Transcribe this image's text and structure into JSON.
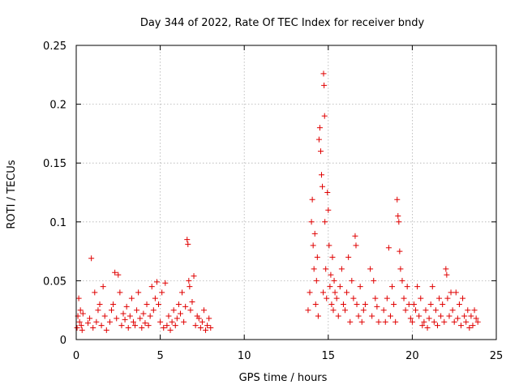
{
  "chart_data": {
    "type": "scatter",
    "title": "Day 344 of 2022, Rate Of TEC Index for receiver bndy",
    "xlabel": "GPS time / hours",
    "ylabel": "ROTI / TECUs",
    "xlim": [
      0,
      25
    ],
    "ylim": [
      0,
      0.25
    ],
    "xticks": [
      0,
      5,
      10,
      15,
      20,
      25
    ],
    "xtick_labels": [
      "0",
      "5",
      "10",
      "15",
      "20",
      "25"
    ],
    "yticks": [
      0,
      0.05,
      0.1,
      0.15,
      0.2,
      0.25
    ],
    "ytick_labels": [
      "0",
      "0.05",
      "0.1",
      "0.15",
      "0.2",
      "0.25"
    ],
    "grid": true,
    "marker": "+",
    "color": "#e00000",
    "series": [
      {
        "name": "ROTI",
        "points": [
          [
            0.05,
            0.01
          ],
          [
            0.1,
            0.02
          ],
          [
            0.15,
            0.035
          ],
          [
            0.2,
            0.015
          ],
          [
            0.25,
            0.025
          ],
          [
            0.3,
            0.012
          ],
          [
            0.35,
            0.008
          ],
          [
            0.4,
            0.022
          ],
          [
            0.7,
            0.014
          ],
          [
            0.8,
            0.018
          ],
          [
            0.9,
            0.069
          ],
          [
            1.0,
            0.01
          ],
          [
            1.1,
            0.04
          ],
          [
            1.2,
            0.015
          ],
          [
            1.3,
            0.025
          ],
          [
            1.4,
            0.03
          ],
          [
            1.5,
            0.012
          ],
          [
            1.6,
            0.045
          ],
          [
            1.7,
            0.02
          ],
          [
            1.8,
            0.008
          ],
          [
            2.0,
            0.015
          ],
          [
            2.1,
            0.025
          ],
          [
            2.2,
            0.03
          ],
          [
            2.3,
            0.057
          ],
          [
            2.4,
            0.018
          ],
          [
            2.5,
            0.055
          ],
          [
            2.6,
            0.04
          ],
          [
            2.7,
            0.012
          ],
          [
            2.8,
            0.022
          ],
          [
            2.9,
            0.017
          ],
          [
            3.0,
            0.028
          ],
          [
            3.1,
            0.01
          ],
          [
            3.2,
            0.02
          ],
          [
            3.3,
            0.035
          ],
          [
            3.4,
            0.015
          ],
          [
            3.5,
            0.012
          ],
          [
            3.6,
            0.025
          ],
          [
            3.7,
            0.04
          ],
          [
            3.8,
            0.018
          ],
          [
            3.9,
            0.01
          ],
          [
            4.0,
            0.022
          ],
          [
            4.1,
            0.014
          ],
          [
            4.2,
            0.03
          ],
          [
            4.3,
            0.012
          ],
          [
            4.4,
            0.02
          ],
          [
            4.5,
            0.045
          ],
          [
            4.6,
            0.025
          ],
          [
            4.7,
            0.035
          ],
          [
            4.8,
            0.049
          ],
          [
            4.9,
            0.03
          ],
          [
            5.0,
            0.015
          ],
          [
            5.1,
            0.04
          ],
          [
            5.2,
            0.01
          ],
          [
            5.3,
            0.048
          ],
          [
            5.4,
            0.012
          ],
          [
            5.5,
            0.02
          ],
          [
            5.6,
            0.008
          ],
          [
            5.7,
            0.015
          ],
          [
            5.8,
            0.025
          ],
          [
            5.9,
            0.012
          ],
          [
            6.0,
            0.018
          ],
          [
            6.1,
            0.03
          ],
          [
            6.2,
            0.022
          ],
          [
            6.3,
            0.04
          ],
          [
            6.4,
            0.015
          ],
          [
            6.5,
            0.028
          ],
          [
            6.6,
            0.085
          ],
          [
            6.65,
            0.081
          ],
          [
            6.7,
            0.05
          ],
          [
            6.75,
            0.045
          ],
          [
            6.8,
            0.025
          ],
          [
            6.9,
            0.032
          ],
          [
            7.0,
            0.054
          ],
          [
            7.1,
            0.012
          ],
          [
            7.2,
            0.02
          ],
          [
            7.3,
            0.018
          ],
          [
            7.4,
            0.01
          ],
          [
            7.5,
            0.015
          ],
          [
            7.6,
            0.025
          ],
          [
            7.7,
            0.008
          ],
          [
            7.8,
            0.012
          ],
          [
            7.9,
            0.018
          ],
          [
            8.0,
            0.01
          ],
          [
            13.8,
            0.025
          ],
          [
            13.9,
            0.04
          ],
          [
            14.0,
            0.1
          ],
          [
            14.05,
            0.119
          ],
          [
            14.1,
            0.08
          ],
          [
            14.15,
            0.06
          ],
          [
            14.2,
            0.09
          ],
          [
            14.25,
            0.03
          ],
          [
            14.3,
            0.05
          ],
          [
            14.35,
            0.07
          ],
          [
            14.4,
            0.02
          ],
          [
            14.45,
            0.17
          ],
          [
            14.5,
            0.18
          ],
          [
            14.55,
            0.16
          ],
          [
            14.6,
            0.14
          ],
          [
            14.65,
            0.13
          ],
          [
            14.7,
            0.04
          ],
          [
            14.72,
            0.226
          ],
          [
            14.75,
            0.216
          ],
          [
            14.78,
            0.19
          ],
          [
            14.8,
            0.1
          ],
          [
            14.85,
            0.06
          ],
          [
            14.9,
            0.035
          ],
          [
            14.95,
            0.125
          ],
          [
            15.0,
            0.11
          ],
          [
            15.05,
            0.08
          ],
          [
            15.1,
            0.045
          ],
          [
            15.15,
            0.055
          ],
          [
            15.2,
            0.03
          ],
          [
            15.25,
            0.07
          ],
          [
            15.3,
            0.025
          ],
          [
            15.35,
            0.05
          ],
          [
            15.4,
            0.04
          ],
          [
            15.5,
            0.035
          ],
          [
            15.6,
            0.02
          ],
          [
            15.7,
            0.045
          ],
          [
            15.8,
            0.06
          ],
          [
            15.9,
            0.03
          ],
          [
            16.0,
            0.025
          ],
          [
            16.1,
            0.04
          ],
          [
            16.2,
            0.07
          ],
          [
            16.3,
            0.015
          ],
          [
            16.4,
            0.05
          ],
          [
            16.5,
            0.035
          ],
          [
            16.6,
            0.088
          ],
          [
            16.65,
            0.08
          ],
          [
            16.7,
            0.03
          ],
          [
            16.8,
            0.02
          ],
          [
            16.9,
            0.045
          ],
          [
            17.0,
            0.015
          ],
          [
            17.1,
            0.025
          ],
          [
            17.2,
            0.03
          ],
          [
            17.5,
            0.06
          ],
          [
            17.6,
            0.02
          ],
          [
            17.7,
            0.05
          ],
          [
            17.8,
            0.035
          ],
          [
            17.9,
            0.028
          ],
          [
            18.0,
            0.015
          ],
          [
            18.3,
            0.025
          ],
          [
            18.4,
            0.015
          ],
          [
            18.5,
            0.035
          ],
          [
            18.6,
            0.078
          ],
          [
            18.7,
            0.02
          ],
          [
            18.8,
            0.045
          ],
          [
            18.9,
            0.03
          ],
          [
            19.0,
            0.015
          ],
          [
            19.1,
            0.119
          ],
          [
            19.15,
            0.105
          ],
          [
            19.2,
            0.1
          ],
          [
            19.25,
            0.075
          ],
          [
            19.3,
            0.06
          ],
          [
            19.4,
            0.05
          ],
          [
            19.5,
            0.035
          ],
          [
            19.6,
            0.025
          ],
          [
            19.7,
            0.045
          ],
          [
            19.8,
            0.03
          ],
          [
            19.9,
            0.018
          ],
          [
            20.0,
            0.015
          ],
          [
            20.1,
            0.03
          ],
          [
            20.2,
            0.025
          ],
          [
            20.3,
            0.045
          ],
          [
            20.4,
            0.02
          ],
          [
            20.5,
            0.035
          ],
          [
            20.6,
            0.012
          ],
          [
            20.7,
            0.015
          ],
          [
            20.8,
            0.025
          ],
          [
            20.9,
            0.01
          ],
          [
            21.0,
            0.018
          ],
          [
            21.1,
            0.03
          ],
          [
            21.2,
            0.045
          ],
          [
            21.3,
            0.015
          ],
          [
            21.4,
            0.025
          ],
          [
            21.5,
            0.012
          ],
          [
            21.6,
            0.035
          ],
          [
            21.7,
            0.02
          ],
          [
            21.8,
            0.03
          ],
          [
            21.9,
            0.015
          ],
          [
            22.0,
            0.06
          ],
          [
            22.05,
            0.055
          ],
          [
            22.1,
            0.035
          ],
          [
            22.2,
            0.02
          ],
          [
            22.3,
            0.04
          ],
          [
            22.4,
            0.025
          ],
          [
            22.5,
            0.015
          ],
          [
            22.6,
            0.04
          ],
          [
            22.7,
            0.018
          ],
          [
            22.8,
            0.03
          ],
          [
            22.9,
            0.012
          ],
          [
            23.0,
            0.035
          ],
          [
            23.1,
            0.02
          ],
          [
            23.2,
            0.015
          ],
          [
            23.3,
            0.025
          ],
          [
            23.4,
            0.01
          ],
          [
            23.5,
            0.02
          ],
          [
            23.6,
            0.012
          ],
          [
            23.7,
            0.025
          ],
          [
            23.8,
            0.018
          ],
          [
            23.9,
            0.015
          ]
        ]
      }
    ]
  }
}
